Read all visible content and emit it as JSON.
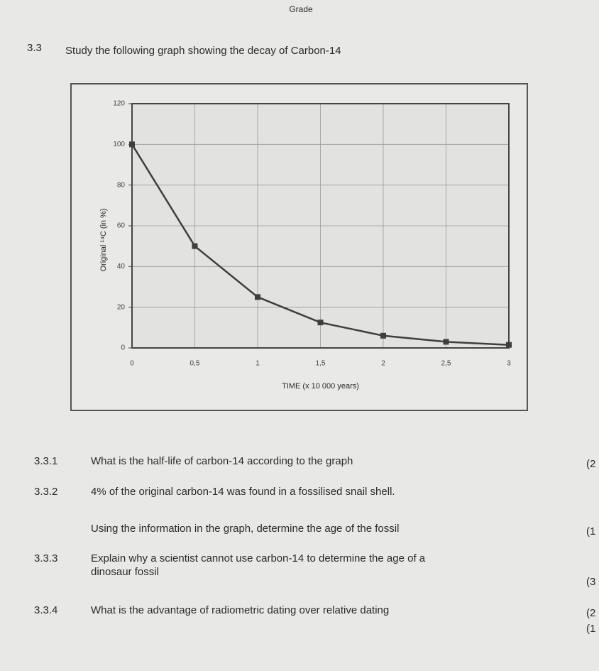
{
  "header": {
    "grade": "Grade"
  },
  "question": {
    "number": "3.3",
    "text": "Study the following graph showing the decay of Carbon-14"
  },
  "chart_data": {
    "type": "line",
    "x_label": "TIME (x 10 000 years)",
    "y_label": "Original ¹⁴C (in %)",
    "x": [
      0,
      0.5,
      1,
      1.5,
      2,
      2.5,
      3
    ],
    "values": [
      100,
      50,
      25,
      12.5,
      6,
      3,
      1.5
    ],
    "color": "#3e3e3e",
    "xlim": [
      0,
      3
    ],
    "xticks": [
      0,
      {
        "value": 0.5,
        "label": "0,5"
      },
      1,
      {
        "value": 1.5,
        "label": "1,5"
      },
      2,
      {
        "value": 2.5,
        "label": "2,5"
      },
      3
    ],
    "ylim": [
      0,
      120
    ],
    "yticks": [
      0,
      20,
      40,
      60,
      80,
      100,
      120
    ],
    "grid": true
  },
  "subquestions": [
    {
      "number": "3.3.1",
      "lines": [
        "What is the half-life of carbon-14 according to the graph"
      ],
      "mark": "(2"
    },
    {
      "number": "3.3.2",
      "lines": [
        "4% of the original carbon-14 was found in a fossilised snail shell."
      ],
      "mark": null
    },
    {
      "number": null,
      "lines": [
        "Using the information in the graph, determine the age of the fossil"
      ],
      "mark": "(1"
    },
    {
      "number": "3.3.3",
      "lines": [
        "Explain why a scientist cannot use carbon-14 to determine the age of a",
        "dinosaur fossil"
      ],
      "mark": "(3"
    },
    {
      "number": "3.3.4",
      "lines": [
        "What is the advantage of radiometric dating over relative dating"
      ],
      "mark": "(2"
    }
  ],
  "extra_mark": "(1"
}
